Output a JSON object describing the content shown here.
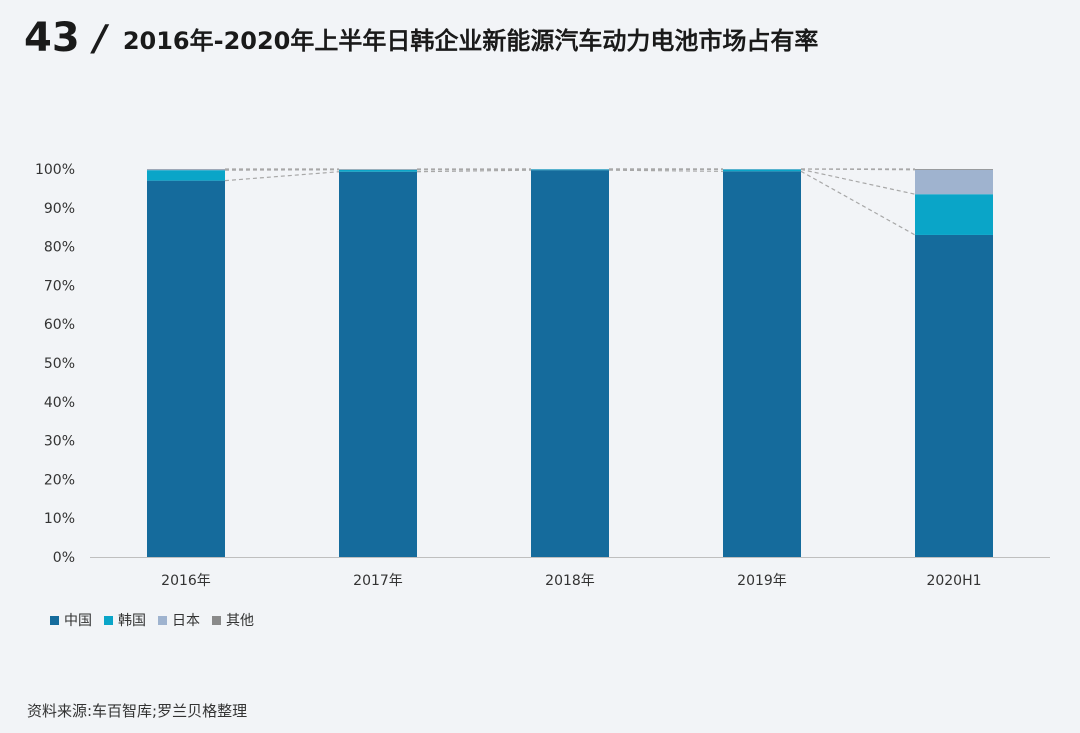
{
  "header": {
    "page_number": "43",
    "slash": "/",
    "title": "2016年-2020年上半年日韩企业新能源汽车动力电池市场占有率"
  },
  "source": "资料来源:车百智库;罗兰贝格整理",
  "colors": {
    "中国": "#156b9c",
    "韩国": "#0aa5c8",
    "日本": "#9fb3cf",
    "其他": "#8a8a8a",
    "connector": "#a8a8a8",
    "axis": "#bfbfbf"
  },
  "chart_data": {
    "type": "bar",
    "stacked": true,
    "categories": [
      "2016年",
      "2017年",
      "2018年",
      "2019年",
      "2020H1"
    ],
    "series": [
      {
        "name": "中国",
        "values": [
          97.0,
          99.3,
          99.7,
          99.4,
          83.0
        ]
      },
      {
        "name": "韩国",
        "values": [
          2.7,
          0.5,
          0.2,
          0.5,
          10.5
        ]
      },
      {
        "name": "日本",
        "values": [
          0.2,
          0.1,
          0.1,
          0.1,
          6.3
        ]
      },
      {
        "name": "其他",
        "values": [
          0.1,
          0.1,
          0.0,
          0.0,
          0.2
        ]
      }
    ],
    "ylim": [
      0,
      100
    ],
    "yticks": [
      "0%",
      "10%",
      "20%",
      "30%",
      "40%",
      "50%",
      "60%",
      "70%",
      "80%",
      "90%",
      "100%"
    ],
    "legend_position": "bottom-left",
    "connector_lines": true,
    "grid": false
  }
}
